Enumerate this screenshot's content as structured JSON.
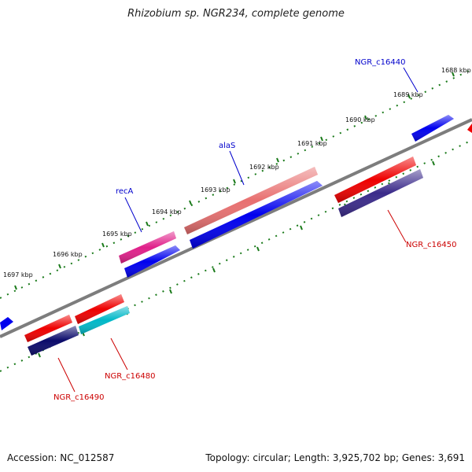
{
  "title": "Rhizobium sp. NGR234, complete genome",
  "footer": {
    "accession": "Accession: NC_012587",
    "topology": "Topology: circular; Length: 3,925,702 bp; Genes: 3,691"
  },
  "ruler": {
    "unit": "kbp",
    "ticks": [
      "1688 kbp",
      "1689 kbp",
      "1690 kbp",
      "1691 kbp",
      "1692 kbp",
      "1693 kbp",
      "1694 kbp",
      "1695 kbp",
      "1696 kbp",
      "1697 kbp"
    ]
  },
  "colors": {
    "backbone": "#808080",
    "ruler": "#1a7a1a",
    "label_forward": "#0000cc",
    "label_reverse": "#cc0000"
  },
  "labels": {
    "recA": "recA",
    "alaS": "alaS",
    "c16440": "NGR_c16440",
    "c16450": "NGR_c16450",
    "c16480": "NGR_c16480",
    "c16490": "NGR_c16490"
  }
}
